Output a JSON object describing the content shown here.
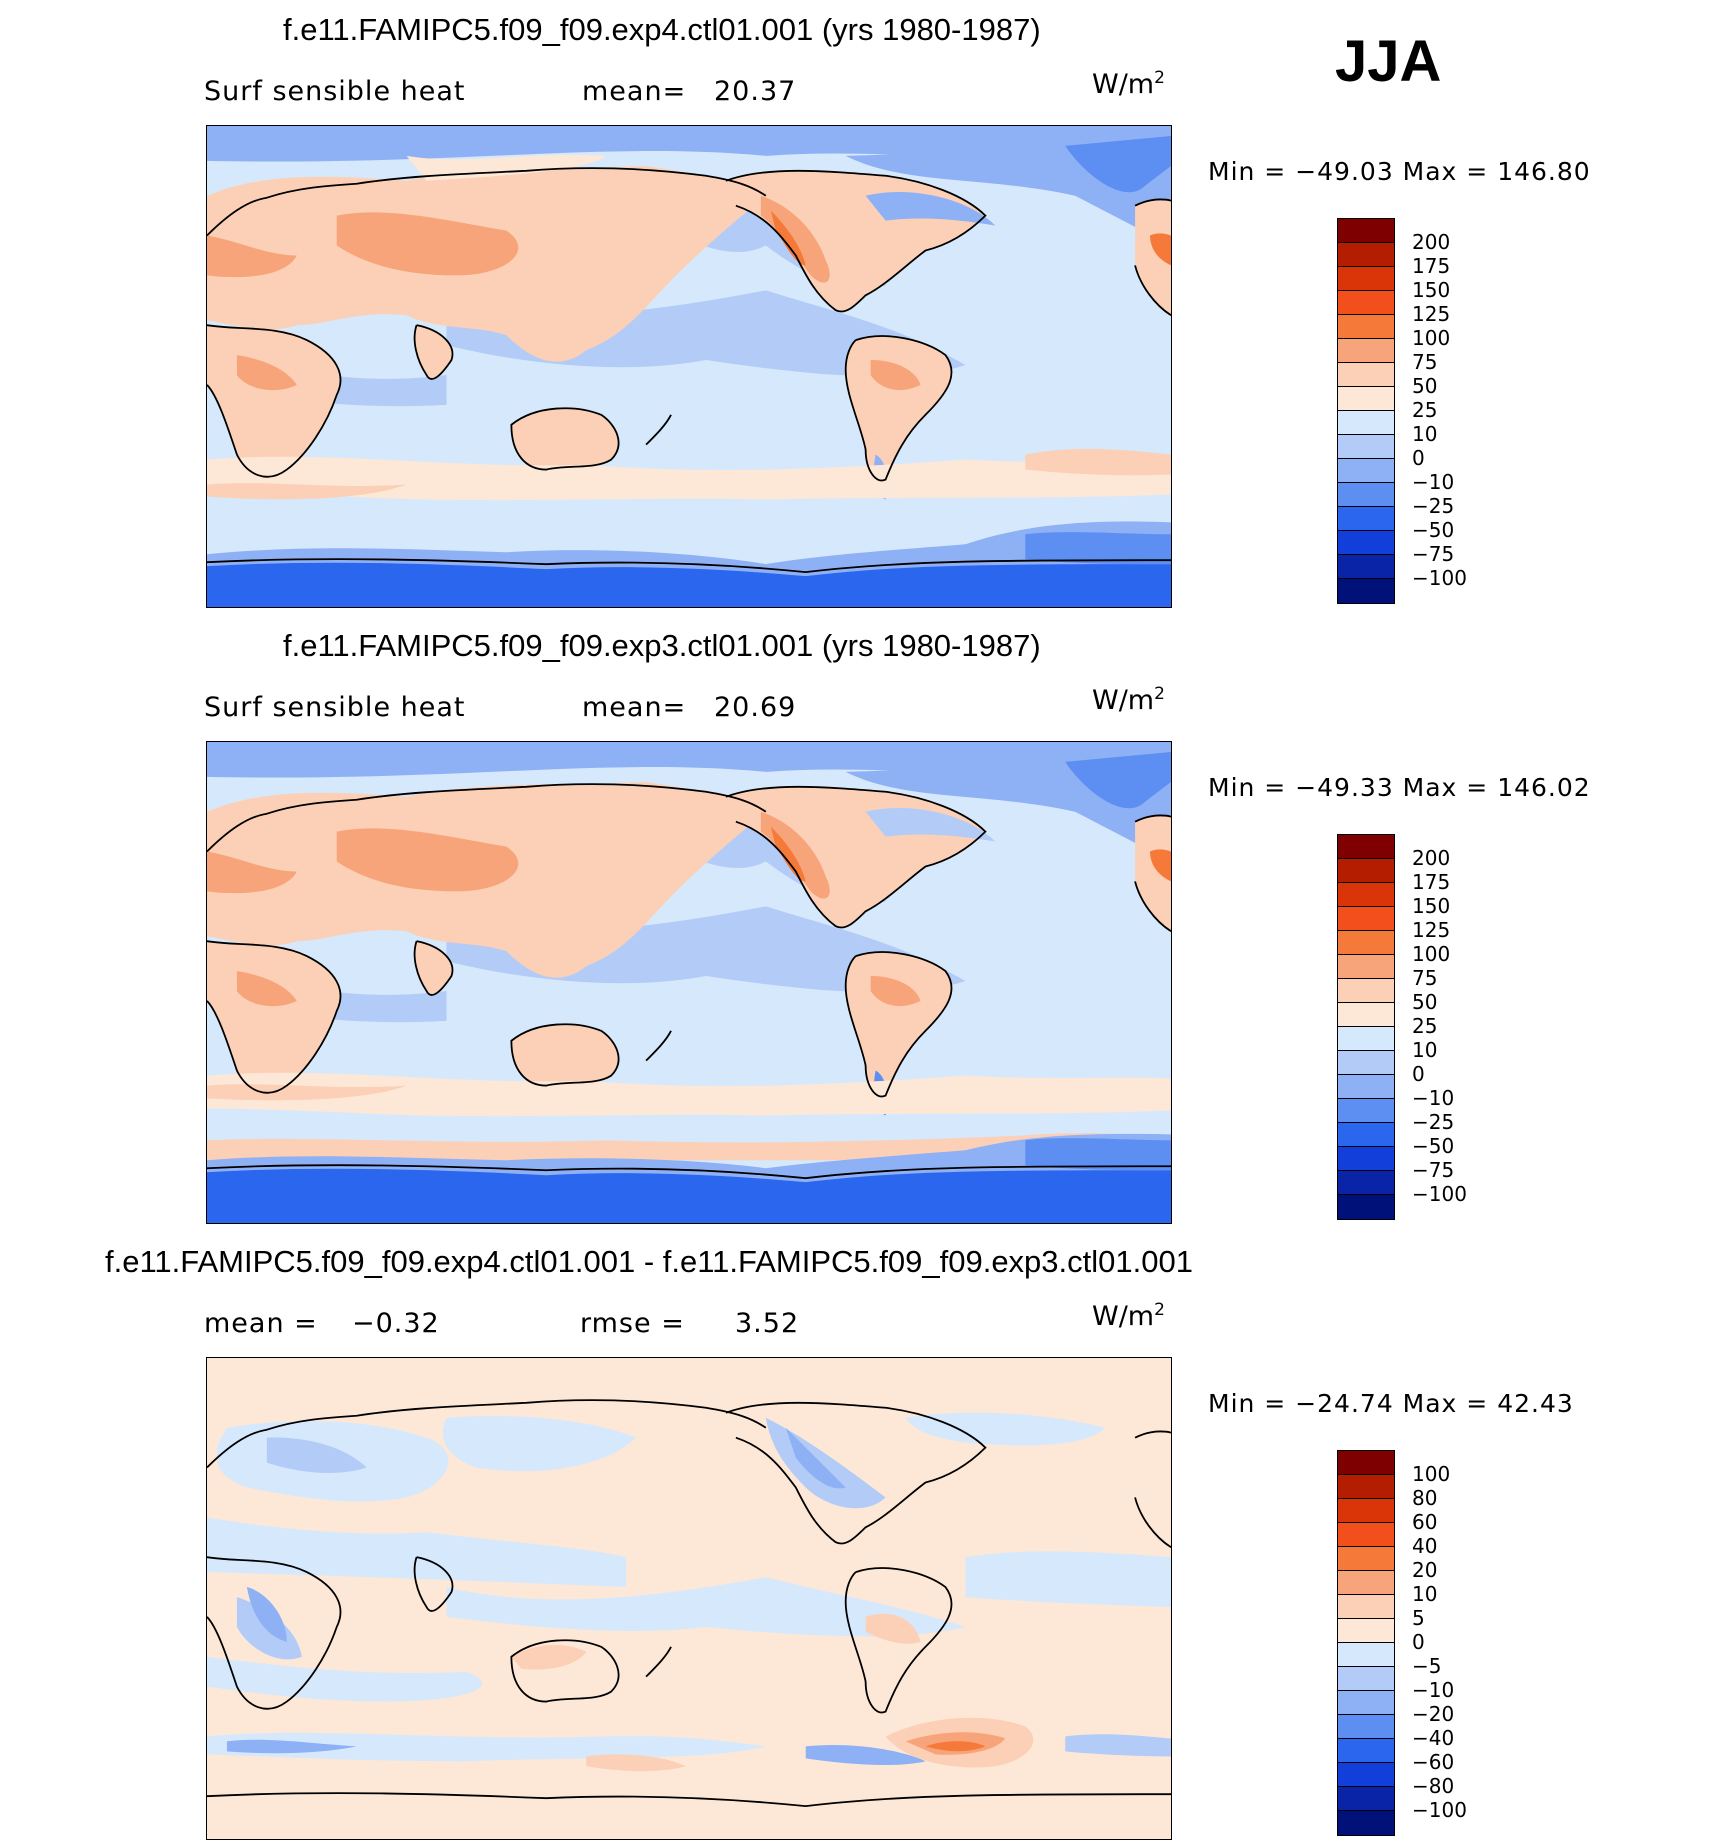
{
  "season": "JJA",
  "units_base": "W/m",
  "units_exp": "2",
  "panels": [
    {
      "title": "f.e11.FAMIPC5.f09_f09.exp4.ctl01.001 (yrs 1980-1987)",
      "left_label": "Surf  sensible heat",
      "stat_label": "mean=",
      "stat_value": "20.37",
      "minmax": "Min  =  −49.03  Max  =  146.80",
      "levels": [
        "200",
        "175",
        "150",
        "125",
        "100",
        "75",
        "50",
        "25",
        "10",
        "0",
        "−10",
        "−25",
        "−50",
        "−75",
        "−100"
      ],
      "colors": [
        "#7f0000",
        "#b51d00",
        "#d93508",
        "#f24f1c",
        "#f57a3a",
        "#f8a47a",
        "#fbd0b6",
        "#fde8d7",
        "#d6e8fb",
        "#b2ccf7",
        "#8eb0f5",
        "#5d8ef2",
        "#2b66ee",
        "#123fd9",
        "#0a24a8",
        "#00127a"
      ]
    },
    {
      "title": "f.e11.FAMIPC5.f09_f09.exp3.ctl01.001 (yrs 1980-1987)",
      "left_label": "Surf  sensible heat",
      "stat_label": "mean=",
      "stat_value": "20.69",
      "minmax": "Min  =  −49.33  Max  =  146.02",
      "levels": [
        "200",
        "175",
        "150",
        "125",
        "100",
        "75",
        "50",
        "25",
        "10",
        "0",
        "−10",
        "−25",
        "−50",
        "−75",
        "−100"
      ],
      "colors": [
        "#7f0000",
        "#b51d00",
        "#d93508",
        "#f24f1c",
        "#f57a3a",
        "#f8a47a",
        "#fbd0b6",
        "#fde8d7",
        "#d6e8fb",
        "#b2ccf7",
        "#8eb0f5",
        "#5d8ef2",
        "#2b66ee",
        "#123fd9",
        "#0a24a8",
        "#00127a"
      ]
    },
    {
      "title": "f.e11.FAMIPC5.f09_f09.exp4.ctl01.001 - f.e11.FAMIPC5.f09_f09.exp3.ctl01.001",
      "left_label": "mean  =",
      "left_value": "−0.32",
      "stat_label": "rmse  =",
      "stat_value": "3.52",
      "minmax": "Min  =  −24.74  Max  =    42.43",
      "levels": [
        "100",
        "80",
        "60",
        "40",
        "20",
        "10",
        "5",
        "0",
        "−5",
        "−10",
        "−20",
        "−40",
        "−60",
        "−80",
        "−100"
      ],
      "colors": [
        "#7f0000",
        "#b51d00",
        "#d93508",
        "#f24f1c",
        "#f57a3a",
        "#f8a47a",
        "#fbd0b6",
        "#fde8d7",
        "#d6e8fb",
        "#b2ccf7",
        "#8eb0f5",
        "#5d8ef2",
        "#2b66ee",
        "#123fd9",
        "#0a24a8",
        "#00127a"
      ]
    }
  ]
}
